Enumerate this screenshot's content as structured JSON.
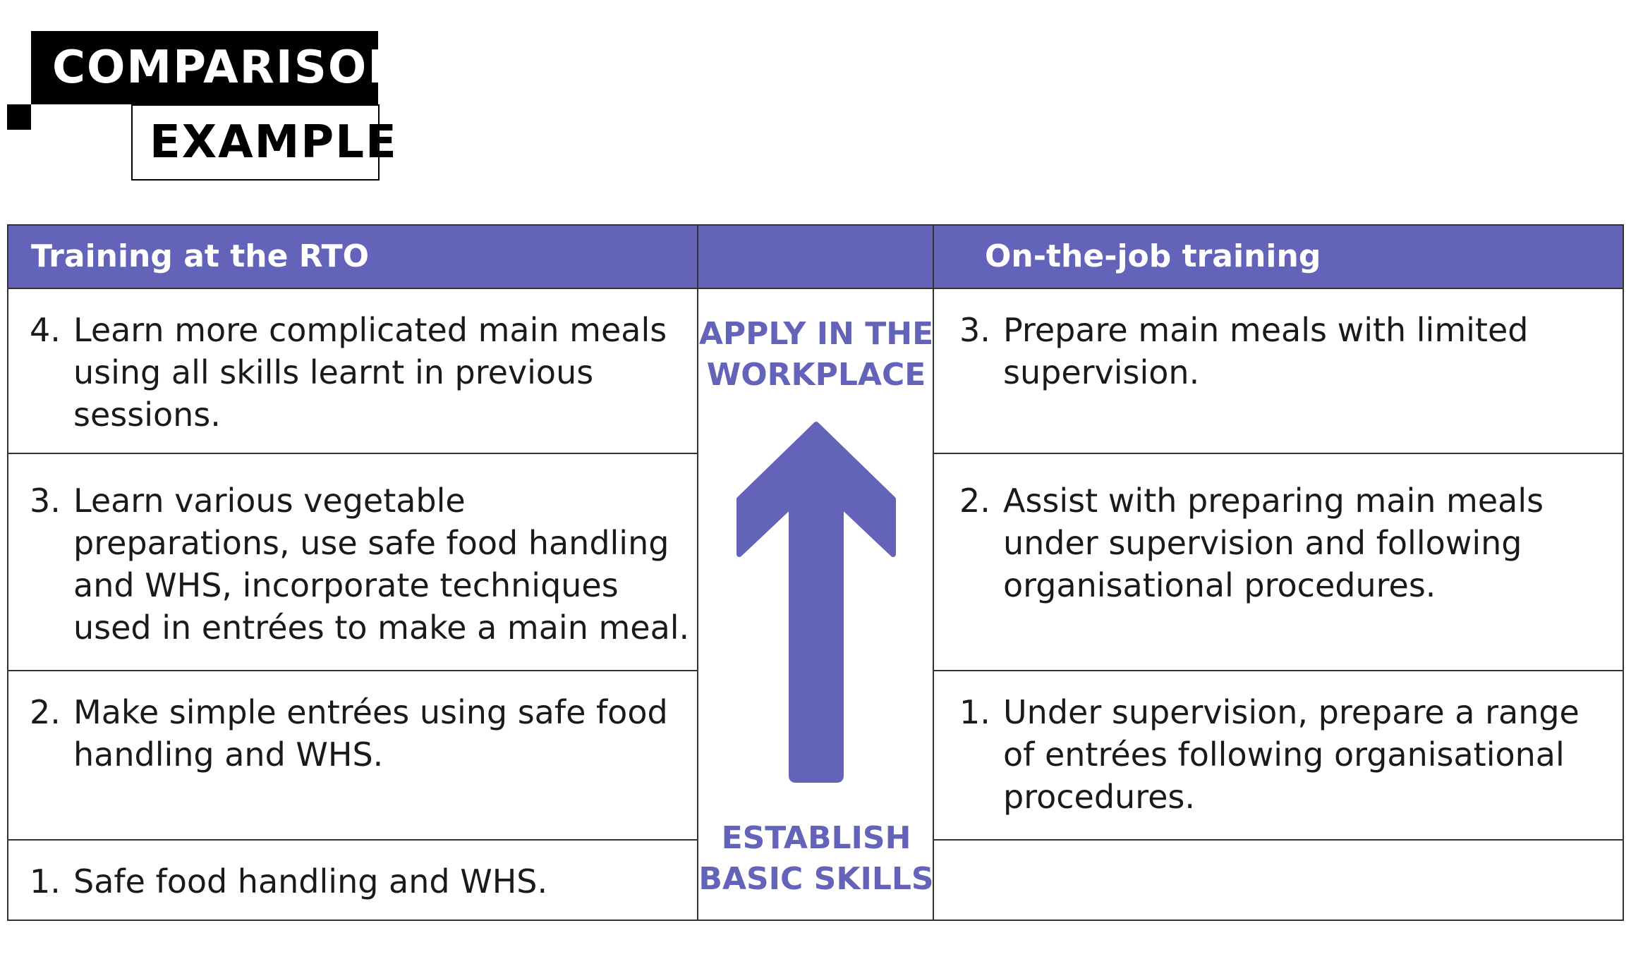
{
  "title": {
    "line1": "COMPARISON",
    "line2": "EXAMPLE"
  },
  "table": {
    "left_header": "Training at the RTO",
    "right_header": "On-the-job training",
    "middle_top_label": "APPLY IN THE WORKPLACE",
    "middle_bottom_label": "ESTABLISH BASIC SKILLS",
    "left_rows": [
      {
        "num": "4.",
        "lines": [
          "Learn more complicated main meals",
          "using all skills learnt in previous",
          "sessions."
        ]
      },
      {
        "num": "3.",
        "lines": [
          "Learn various vegetable",
          "preparations, use safe food handling",
          "and WHS, incorporate techniques",
          "used in entrées to make a main meal."
        ]
      },
      {
        "num": "2.",
        "lines": [
          "Make simple entrées using safe food",
          "handling and WHS."
        ]
      },
      {
        "num": "1.",
        "lines": [
          "Safe food handling and WHS."
        ]
      }
    ],
    "right_rows": [
      {
        "num": "3.",
        "lines": [
          "Prepare main meals with limited",
          "supervision."
        ]
      },
      {
        "num": "2.",
        "lines": [
          "Assist with preparing main meals",
          "under supervision and following",
          "organisational procedures."
        ]
      },
      {
        "num": "1.",
        "lines": [
          "Under supervision, prepare a range",
          "of entrées following organisational",
          "procedures."
        ]
      }
    ]
  },
  "colors": {
    "accent": "#6363b9",
    "border": "#333333",
    "title_bg": "#000000"
  },
  "icons": {
    "middle": "up-arrow-icon"
  }
}
